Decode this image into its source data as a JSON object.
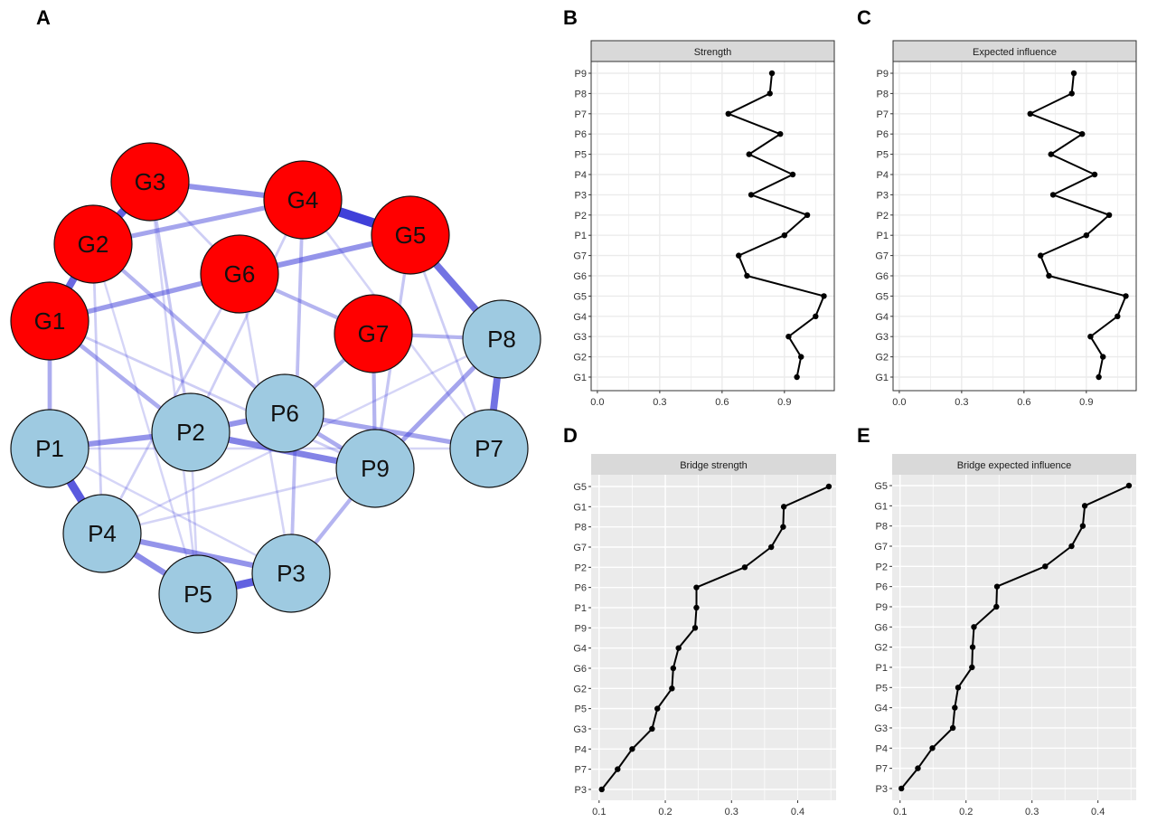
{
  "panel_labels": {
    "a": "A",
    "b": "B",
    "c": "C",
    "d": "D",
    "e": "E"
  },
  "network": {
    "colors": {
      "group_G": "#ff0000",
      "group_P": "#9ecae1",
      "edge": "#3a3ad8"
    },
    "nodes": [
      {
        "id": "G1",
        "group": "G"
      },
      {
        "id": "G2",
        "group": "G"
      },
      {
        "id": "G3",
        "group": "G"
      },
      {
        "id": "G4",
        "group": "G"
      },
      {
        "id": "G5",
        "group": "G"
      },
      {
        "id": "G6",
        "group": "G"
      },
      {
        "id": "G7",
        "group": "G"
      },
      {
        "id": "P1",
        "group": "P"
      },
      {
        "id": "P2",
        "group": "P"
      },
      {
        "id": "P3",
        "group": "P"
      },
      {
        "id": "P4",
        "group": "P"
      },
      {
        "id": "P5",
        "group": "P"
      },
      {
        "id": "P6",
        "group": "P"
      },
      {
        "id": "P7",
        "group": "P"
      },
      {
        "id": "P8",
        "group": "P"
      },
      {
        "id": "P9",
        "group": "P"
      }
    ],
    "edges": [
      [
        "G4",
        "G5",
        1.0
      ],
      [
        "G2",
        "G3",
        0.8
      ],
      [
        "G1",
        "G2",
        0.75
      ],
      [
        "P1",
        "P4",
        0.85
      ],
      [
        "P8",
        "P7",
        0.7
      ],
      [
        "G5",
        "P8",
        0.7
      ],
      [
        "P5",
        "P3",
        0.8
      ],
      [
        "P4",
        "P5",
        0.55
      ],
      [
        "P4",
        "P3",
        0.5
      ],
      [
        "G3",
        "G4",
        0.5
      ],
      [
        "G6",
        "G5",
        0.5
      ],
      [
        "G1",
        "G6",
        0.45
      ],
      [
        "P2",
        "P9",
        0.6
      ],
      [
        "P2",
        "P6",
        0.5
      ],
      [
        "P1",
        "P2",
        0.5
      ],
      [
        "P6",
        "P7",
        0.4
      ],
      [
        "P6",
        "P9",
        0.35
      ],
      [
        "P9",
        "P8",
        0.4
      ],
      [
        "G2",
        "G4",
        0.4
      ],
      [
        "G1",
        "P1",
        0.35
      ],
      [
        "G7",
        "P8",
        0.3
      ],
      [
        "G7",
        "P6",
        0.3
      ],
      [
        "G1",
        "P2",
        0.35
      ],
      [
        "G2",
        "P6",
        0.3
      ],
      [
        "G6",
        "G7",
        0.3
      ],
      [
        "G4",
        "P3",
        0.25
      ],
      [
        "G7",
        "P9",
        0.3
      ],
      [
        "P9",
        "P3",
        0.3
      ],
      [
        "G5",
        "P9",
        0.2
      ],
      [
        "G3",
        "P2",
        0.2
      ],
      [
        "G1",
        "P9",
        0.15
      ],
      [
        "G2",
        "P4",
        0.15
      ],
      [
        "G6",
        "P4",
        0.15
      ],
      [
        "G4",
        "P2",
        0.15
      ],
      [
        "P1",
        "P7",
        0.12
      ],
      [
        "G3",
        "P5",
        0.12
      ],
      [
        "G5",
        "P7",
        0.15
      ],
      [
        "P4",
        "P9",
        0.12
      ],
      [
        "P2",
        "P5",
        0.12
      ],
      [
        "G6",
        "P3",
        0.12
      ],
      [
        "P1",
        "P3",
        0.1
      ],
      [
        "G4",
        "P7",
        0.12
      ],
      [
        "G2",
        "P5",
        0.1
      ],
      [
        "P8",
        "P4",
        0.1
      ],
      [
        "G3",
        "G6",
        0.15
      ]
    ]
  },
  "chart_data": [
    {
      "panel": "B",
      "type": "line",
      "title": "Strength",
      "categories": [
        "G1",
        "G2",
        "G3",
        "G4",
        "G5",
        "G6",
        "G7",
        "P1",
        "P2",
        "P3",
        "P4",
        "P5",
        "P6",
        "P7",
        "P8",
        "P9"
      ],
      "values": [
        0.96,
        0.98,
        0.92,
        1.05,
        1.09,
        0.72,
        0.68,
        0.9,
        1.01,
        0.74,
        0.94,
        0.73,
        0.88,
        0.63,
        0.83,
        0.84
      ],
      "xticks": [
        "0.0",
        "0.3",
        "0.6",
        "0.9"
      ],
      "xlim": [
        -0.03,
        1.14
      ],
      "theme": "bw",
      "grid": true
    },
    {
      "panel": "C",
      "type": "line",
      "title": "Expected influence",
      "categories": [
        "G1",
        "G2",
        "G3",
        "G4",
        "G5",
        "G6",
        "G7",
        "P1",
        "P2",
        "P3",
        "P4",
        "P5",
        "P6",
        "P7",
        "P8",
        "P9"
      ],
      "values": [
        0.96,
        0.98,
        0.92,
        1.05,
        1.09,
        0.72,
        0.68,
        0.9,
        1.01,
        0.74,
        0.94,
        0.73,
        0.88,
        0.63,
        0.83,
        0.84
      ],
      "xticks": [
        "0.0",
        "0.3",
        "0.6",
        "0.9"
      ],
      "xlim": [
        -0.03,
        1.14
      ],
      "theme": "bw",
      "grid": true
    },
    {
      "panel": "D",
      "type": "line",
      "title": "Bridge strength",
      "categories": [
        "P3",
        "P7",
        "P4",
        "G3",
        "P5",
        "G2",
        "G6",
        "G4",
        "P9",
        "P1",
        "P6",
        "P2",
        "G7",
        "P8",
        "G1",
        "G5"
      ],
      "values": [
        0.104,
        0.128,
        0.15,
        0.18,
        0.188,
        0.21,
        0.212,
        0.22,
        0.245,
        0.247,
        0.247,
        0.32,
        0.36,
        0.378,
        0.379,
        0.447
      ],
      "xticks": [
        "0.1",
        "0.2",
        "0.3",
        "0.4"
      ],
      "xlim": [
        0.088,
        0.458
      ],
      "theme": "gray",
      "grid": true
    },
    {
      "panel": "E",
      "type": "line",
      "title": "Bridge expected influence",
      "categories": [
        "P3",
        "P7",
        "P4",
        "G3",
        "G4",
        "P5",
        "P1",
        "G2",
        "G6",
        "P9",
        "P6",
        "P2",
        "G7",
        "P8",
        "G1",
        "G5"
      ],
      "values": [
        0.102,
        0.127,
        0.149,
        0.18,
        0.183,
        0.188,
        0.209,
        0.21,
        0.212,
        0.246,
        0.247,
        0.32,
        0.36,
        0.377,
        0.38,
        0.447
      ],
      "xticks": [
        "0.1",
        "0.2",
        "0.3",
        "0.4"
      ],
      "xlim": [
        0.088,
        0.458
      ],
      "theme": "gray",
      "grid": true
    }
  ]
}
